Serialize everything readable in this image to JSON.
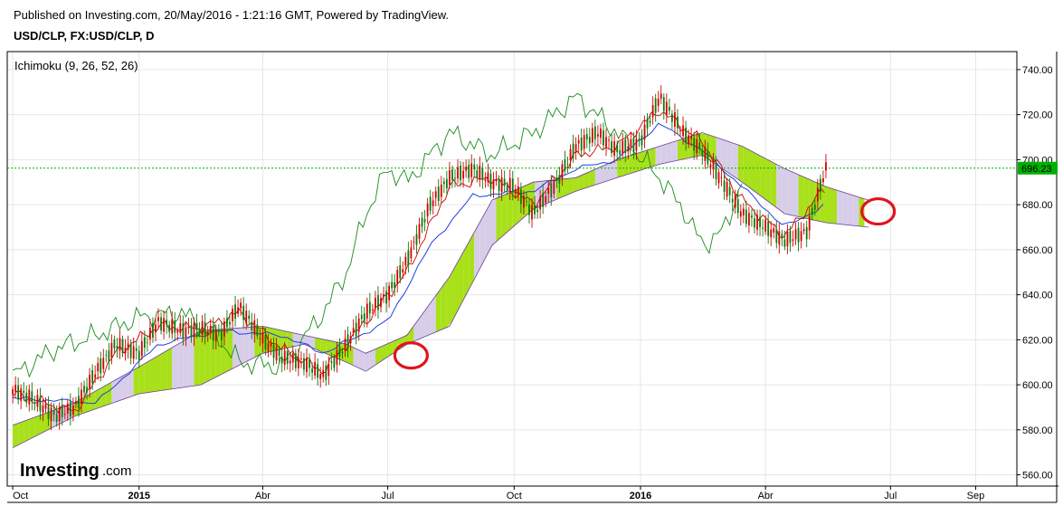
{
  "header": {
    "published": "Published on Investing.com, 20/May/2016 - 1:21:16 GMT, Powered by TradingView.",
    "symbol": "USD/CLP, FX:USD/CLP, D"
  },
  "indicator_label": "Ichimoku (9, 26, 52, 26)",
  "logo": {
    "main": "Investing",
    "suffix": ".com"
  },
  "price_tag": "696.23",
  "colors": {
    "candle_up": "#0a7a0a",
    "candle_down": "#d40000",
    "conversion_line": "#d40000",
    "base_line": "#1f3fe0",
    "lagging_span": "#1a8a1a",
    "cloud_bull": "#a8e01a",
    "cloud_bear": "#d8cde8",
    "last_price": "#00b000",
    "annotation_circle": "#e0141e"
  },
  "chart_data": {
    "type": "line",
    "title": "USD/CLP, FX:USD/CLP, D",
    "indicator": "Ichimoku (9, 26, 52, 26)",
    "y_axis": {
      "ylim": [
        555,
        748
      ],
      "ticks": [
        "560.00",
        "580.00",
        "600.00",
        "620.00",
        "640.00",
        "660.00",
        "680.00",
        "700.00",
        "720.00",
        "740.00"
      ],
      "position": "right"
    },
    "x_axis": {
      "ticks": [
        "Oct",
        "2015",
        "Abr",
        "Jul",
        "Oct",
        "2016",
        "Abr",
        "Jul",
        "Sep"
      ],
      "bold_ticks": [
        "2015",
        "2016"
      ]
    },
    "last_price": 696.23,
    "grid": true,
    "series": [
      {
        "type": "candlestick",
        "points": [
          {
            "x": "2014-10-01",
            "y": 598
          },
          {
            "x": "2014-10-15",
            "y": 594
          },
          {
            "x": "2014-11-01",
            "y": 586
          },
          {
            "x": "2014-11-15",
            "y": 590
          },
          {
            "x": "2014-12-01",
            "y": 606
          },
          {
            "x": "2014-12-15",
            "y": 618
          },
          {
            "x": "2015-01-01",
            "y": 614
          },
          {
            "x": "2015-01-15",
            "y": 628
          },
          {
            "x": "2015-02-01",
            "y": 624
          },
          {
            "x": "2015-02-15",
            "y": 625
          },
          {
            "x": "2015-03-01",
            "y": 622
          },
          {
            "x": "2015-03-15",
            "y": 635
          },
          {
            "x": "2015-04-01",
            "y": 620
          },
          {
            "x": "2015-04-15",
            "y": 612
          },
          {
            "x": "2015-05-01",
            "y": 610
          },
          {
            "x": "2015-05-15",
            "y": 604
          },
          {
            "x": "2015-06-01",
            "y": 618
          },
          {
            "x": "2015-06-15",
            "y": 632
          },
          {
            "x": "2015-07-01",
            "y": 640
          },
          {
            "x": "2015-07-15",
            "y": 655
          },
          {
            "x": "2015-08-01",
            "y": 680
          },
          {
            "x": "2015-08-15",
            "y": 692
          },
          {
            "x": "2015-09-01",
            "y": 696
          },
          {
            "x": "2015-09-15",
            "y": 690
          },
          {
            "x": "2015-10-01",
            "y": 688
          },
          {
            "x": "2015-10-15",
            "y": 676
          },
          {
            "x": "2015-11-01",
            "y": 690
          },
          {
            "x": "2015-11-15",
            "y": 706
          },
          {
            "x": "2015-12-01",
            "y": 712
          },
          {
            "x": "2015-12-15",
            "y": 704
          },
          {
            "x": "2016-01-01",
            "y": 708
          },
          {
            "x": "2016-01-15",
            "y": 728
          },
          {
            "x": "2016-02-01",
            "y": 712
          },
          {
            "x": "2016-02-15",
            "y": 704
          },
          {
            "x": "2016-03-01",
            "y": 690
          },
          {
            "x": "2016-03-15",
            "y": 676
          },
          {
            "x": "2016-04-01",
            "y": 670
          },
          {
            "x": "2016-04-15",
            "y": 664
          },
          {
            "x": "2016-05-01",
            "y": 668
          },
          {
            "x": "2016-05-15",
            "y": 696
          }
        ]
      },
      {
        "type": "conversion_line",
        "points": [
          {
            "x": "2014-10-01",
            "y": 596
          },
          {
            "x": "2014-11-15",
            "y": 588
          },
          {
            "x": "2014-12-15",
            "y": 614
          },
          {
            "x": "2015-01-15",
            "y": 626
          },
          {
            "x": "2015-02-15",
            "y": 625
          },
          {
            "x": "2015-03-15",
            "y": 632
          },
          {
            "x": "2015-04-15",
            "y": 616
          },
          {
            "x": "2015-05-15",
            "y": 606
          },
          {
            "x": "2015-06-15",
            "y": 628
          },
          {
            "x": "2015-07-15",
            "y": 650
          },
          {
            "x": "2015-08-15",
            "y": 688
          },
          {
            "x": "2015-09-15",
            "y": 692
          },
          {
            "x": "2015-10-15",
            "y": 680
          },
          {
            "x": "2015-11-15",
            "y": 702
          },
          {
            "x": "2015-12-15",
            "y": 706
          },
          {
            "x": "2016-01-15",
            "y": 722
          },
          {
            "x": "2016-02-15",
            "y": 708
          },
          {
            "x": "2016-03-15",
            "y": 682
          },
          {
            "x": "2016-04-15",
            "y": 666
          },
          {
            "x": "2016-05-15",
            "y": 688
          }
        ]
      },
      {
        "type": "base_line",
        "points": [
          {
            "x": "2014-10-01",
            "y": 594
          },
          {
            "x": "2014-12-01",
            "y": 592
          },
          {
            "x": "2015-01-15",
            "y": 618
          },
          {
            "x": "2015-03-01",
            "y": 624
          },
          {
            "x": "2015-04-15",
            "y": 622
          },
          {
            "x": "2015-05-15",
            "y": 614
          },
          {
            "x": "2015-07-01",
            "y": 628
          },
          {
            "x": "2015-08-01",
            "y": 662
          },
          {
            "x": "2015-09-01",
            "y": 684
          },
          {
            "x": "2015-10-15",
            "y": 686
          },
          {
            "x": "2015-11-15",
            "y": 696
          },
          {
            "x": "2015-12-15",
            "y": 700
          },
          {
            "x": "2016-01-15",
            "y": 716
          },
          {
            "x": "2016-02-15",
            "y": 704
          },
          {
            "x": "2016-03-15",
            "y": 688
          },
          {
            "x": "2016-04-15",
            "y": 670
          },
          {
            "x": "2016-05-15",
            "y": 680
          }
        ]
      },
      {
        "type": "lagging_span",
        "points": [
          {
            "x": "2014-10-01",
            "y": 604
          },
          {
            "x": "2014-11-01",
            "y": 616
          },
          {
            "x": "2014-12-01",
            "y": 622
          },
          {
            "x": "2015-01-01",
            "y": 630
          },
          {
            "x": "2015-02-01",
            "y": 632
          },
          {
            "x": "2015-03-01",
            "y": 620
          },
          {
            "x": "2015-03-15",
            "y": 610
          },
          {
            "x": "2015-04-15",
            "y": 608
          },
          {
            "x": "2015-05-15",
            "y": 632
          },
          {
            "x": "2015-06-01",
            "y": 650
          },
          {
            "x": "2015-06-15",
            "y": 676
          },
          {
            "x": "2015-07-01",
            "y": 696
          },
          {
            "x": "2015-07-15",
            "y": 690
          },
          {
            "x": "2015-08-15",
            "y": 712
          },
          {
            "x": "2015-09-15",
            "y": 702
          },
          {
            "x": "2015-10-15",
            "y": 712
          },
          {
            "x": "2015-11-15",
            "y": 728
          },
          {
            "x": "2015-12-15",
            "y": 712
          },
          {
            "x": "2016-01-15",
            "y": 692
          },
          {
            "x": "2016-02-01",
            "y": 678
          },
          {
            "x": "2016-02-15",
            "y": 662
          },
          {
            "x": "2016-03-01",
            "y": 668
          },
          {
            "x": "2016-03-15",
            "y": 690
          }
        ]
      },
      {
        "type": "cloud_upper",
        "points": [
          {
            "x": "2014-10-01",
            "y": 582
          },
          {
            "x": "2014-11-15",
            "y": 592
          },
          {
            "x": "2015-01-01",
            "y": 608
          },
          {
            "x": "2015-02-15",
            "y": 624
          },
          {
            "x": "2015-04-01",
            "y": 626
          },
          {
            "x": "2015-05-01",
            "y": 622
          },
          {
            "x": "2015-06-01",
            "y": 618
          },
          {
            "x": "2015-06-15",
            "y": 614
          },
          {
            "x": "2015-07-15",
            "y": 622
          },
          {
            "x": "2015-08-15",
            "y": 648
          },
          {
            "x": "2015-09-15",
            "y": 682
          },
          {
            "x": "2015-10-15",
            "y": 690
          },
          {
            "x": "2015-11-15",
            "y": 692
          },
          {
            "x": "2015-12-15",
            "y": 700
          },
          {
            "x": "2016-01-15",
            "y": 706
          },
          {
            "x": "2016-02-15",
            "y": 712
          },
          {
            "x": "2016-03-15",
            "y": 706
          },
          {
            "x": "2016-04-15",
            "y": 696
          },
          {
            "x": "2016-05-15",
            "y": 688
          },
          {
            "x": "2016-06-15",
            "y": 682
          }
        ]
      },
      {
        "type": "cloud_lower",
        "points": [
          {
            "x": "2014-10-01",
            "y": 572
          },
          {
            "x": "2014-11-15",
            "y": 586
          },
          {
            "x": "2015-01-01",
            "y": 596
          },
          {
            "x": "2015-02-15",
            "y": 600
          },
          {
            "x": "2015-04-01",
            "y": 614
          },
          {
            "x": "2015-05-01",
            "y": 618
          },
          {
            "x": "2015-06-01",
            "y": 610
          },
          {
            "x": "2015-06-15",
            "y": 606
          },
          {
            "x": "2015-07-15",
            "y": 618
          },
          {
            "x": "2015-08-15",
            "y": 626
          },
          {
            "x": "2015-09-15",
            "y": 662
          },
          {
            "x": "2015-10-15",
            "y": 678
          },
          {
            "x": "2015-11-15",
            "y": 686
          },
          {
            "x": "2015-12-15",
            "y": 692
          },
          {
            "x": "2016-01-15",
            "y": 698
          },
          {
            "x": "2016-02-15",
            "y": 702
          },
          {
            "x": "2016-03-15",
            "y": 690
          },
          {
            "x": "2016-04-15",
            "y": 676
          },
          {
            "x": "2016-05-15",
            "y": 672
          },
          {
            "x": "2016-06-15",
            "y": 670
          }
        ]
      }
    ],
    "annotations": [
      {
        "type": "circle",
        "x": "2015-07-18",
        "y": 613
      },
      {
        "type": "circle",
        "x": "2016-06-22",
        "y": 677
      }
    ]
  }
}
